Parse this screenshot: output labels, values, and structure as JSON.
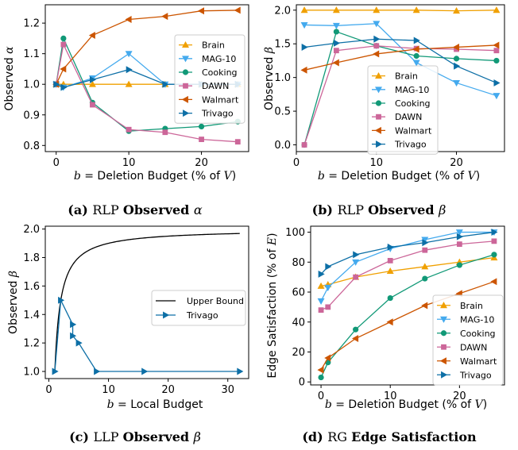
{
  "colors": {
    "Brain": "#f0a000",
    "MAG-10": "#44aaee",
    "Cooking": "#119977",
    "DAWN": "#cc6699",
    "Walmart": "#cc5500",
    "Trivago": "#0d6fa6",
    "Upper Bound": "#000000"
  },
  "chart_data": [
    {
      "type": "line",
      "panel": "a",
      "caption": {
        "tag": "(a)",
        "prefix": "RLP",
        "bold": "Observed",
        "symbol": "α"
      },
      "xlabel": "b = Deletion Budget (% of V)",
      "ylabel": "Observed α",
      "xlim": [
        -1.5,
        26.5
      ],
      "ylim": [
        0.78,
        1.26
      ],
      "xticks": [
        0,
        10,
        20
      ],
      "yticks": [
        0.8,
        0.9,
        1.0,
        1.1,
        1.2
      ],
      "ytick_labels": [
        "0.8",
        "0.9",
        "1.0",
        "1.1",
        "1.2"
      ],
      "legend": "center-right",
      "series": [
        {
          "name": "Brain",
          "marker": "tri-up",
          "x": [
            0,
            1,
            5,
            10,
            15,
            20,
            25
          ],
          "y": [
            1.0,
            1.0,
            1.0,
            1.0,
            1.0,
            1.0,
            1.0
          ]
        },
        {
          "name": "MAG-10",
          "marker": "tri-down",
          "x": [
            0,
            1,
            5,
            10,
            15,
            20,
            25
          ],
          "y": [
            1.0,
            0.99,
            1.02,
            1.1,
            1.0,
            1.0,
            1.0
          ]
        },
        {
          "name": "Cooking",
          "marker": "circle",
          "x": [
            0,
            1,
            5,
            10,
            15,
            20,
            25
          ],
          "y": [
            1.0,
            1.15,
            0.94,
            0.847,
            0.855,
            0.862,
            0.878
          ]
        },
        {
          "name": "DAWN",
          "marker": "square",
          "x": [
            0,
            1,
            5,
            10,
            15,
            20,
            25
          ],
          "y": [
            1.0,
            1.13,
            0.933,
            0.852,
            0.843,
            0.82,
            0.812
          ]
        },
        {
          "name": "Walmart",
          "marker": "tri-left",
          "x": [
            0,
            1,
            5,
            10,
            15,
            20,
            25
          ],
          "y": [
            1.0,
            1.05,
            1.16,
            1.212,
            1.222,
            1.24,
            1.242
          ]
        },
        {
          "name": "Trivago",
          "marker": "tri-right",
          "x": [
            0,
            1,
            5,
            10,
            15,
            20,
            25
          ],
          "y": [
            1.0,
            0.99,
            1.015,
            1.048,
            1.0,
            1.0,
            1.0
          ]
        }
      ]
    },
    {
      "type": "line",
      "panel": "b",
      "caption": {
        "tag": "(b)",
        "prefix": "RLP",
        "bold": "Observed",
        "symbol": "β"
      },
      "xlabel": "b = Deletion Budget (% of V)",
      "ylabel": "Observed β",
      "xlim": [
        0.0,
        26.0
      ],
      "ylim": [
        -0.1,
        2.08
      ],
      "xticks": [
        0,
        10,
        20
      ],
      "yticks": [
        0.0,
        0.5,
        1.0,
        1.5,
        2.0
      ],
      "ytick_labels": [
        "0.0",
        "0.5",
        "1.0",
        "1.5",
        "2.0"
      ],
      "legend": "lower-center",
      "series": [
        {
          "name": "Brain",
          "marker": "tri-up",
          "x": [
            1,
            5,
            10,
            15,
            20,
            25
          ],
          "y": [
            2.0,
            2.0,
            2.0,
            2.0,
            1.99,
            2.0
          ]
        },
        {
          "name": "MAG-10",
          "marker": "tri-down",
          "x": [
            1,
            5,
            10,
            15,
            20,
            25
          ],
          "y": [
            1.78,
            1.77,
            1.8,
            1.22,
            0.92,
            0.73
          ]
        },
        {
          "name": "Cooking",
          "marker": "circle",
          "x": [
            1,
            5,
            10,
            15,
            20,
            25
          ],
          "y": [
            0.0,
            1.68,
            1.47,
            1.32,
            1.28,
            1.25
          ]
        },
        {
          "name": "DAWN",
          "marker": "square",
          "x": [
            1,
            5,
            10,
            15,
            20,
            25
          ],
          "y": [
            0.0,
            1.4,
            1.47,
            1.43,
            1.42,
            1.4
          ]
        },
        {
          "name": "Walmart",
          "marker": "tri-left",
          "x": [
            1,
            5,
            10,
            15,
            20,
            25
          ],
          "y": [
            1.11,
            1.22,
            1.35,
            1.42,
            1.45,
            1.48
          ]
        },
        {
          "name": "Trivago",
          "marker": "tri-right",
          "x": [
            1,
            5,
            10,
            15,
            20,
            25
          ],
          "y": [
            1.45,
            1.51,
            1.57,
            1.55,
            1.17,
            0.92
          ]
        }
      ]
    },
    {
      "type": "line",
      "panel": "c",
      "caption": {
        "tag": "(c)",
        "prefix": "LLP",
        "bold": "Observed",
        "symbol": "β"
      },
      "xlabel": "b = Local Budget",
      "ylabel": "Observed β",
      "xlim": [
        -0.6,
        33.5
      ],
      "ylim": [
        0.95,
        2.02
      ],
      "xticks": [
        0,
        10,
        20,
        30
      ],
      "yticks": [
        1.0,
        1.2,
        1.4,
        1.6,
        1.8,
        2.0
      ],
      "ytick_labels": [
        "1.0",
        "1.2",
        "1.4",
        "1.6",
        "1.8",
        "2.0"
      ],
      "legend": "center-right",
      "series": [
        {
          "name": "Upper Bound",
          "marker": "none",
          "curve": "2 - 1/b",
          "x_range": [
            1,
            32
          ]
        },
        {
          "name": "Trivago",
          "marker": "tri-right",
          "x": [
            1,
            2,
            4,
            4,
            5,
            8,
            16,
            32
          ],
          "y": [
            1.0,
            1.5,
            1.33,
            1.25,
            1.2,
            1.0,
            1.0,
            1.0
          ]
        }
      ]
    },
    {
      "type": "line",
      "panel": "d",
      "caption": {
        "tag": "(d)",
        "prefix": "RG",
        "bold": "Edge Satisfaction",
        "symbol": ""
      },
      "xlabel": "b = Deletion Budget (% of V)",
      "ylabel": "Edge Satisfaction (% of E)",
      "xlim": [
        -1.5,
        26.5
      ],
      "ylim": [
        -2,
        104
      ],
      "xticks": [
        0,
        10,
        20
      ],
      "yticks": [
        0,
        20,
        40,
        60,
        80,
        100
      ],
      "ytick_labels": [
        "0",
        "20",
        "40",
        "60",
        "80",
        "100"
      ],
      "legend": "lower-right",
      "series": [
        {
          "name": "Brain",
          "marker": "tri-up",
          "x": [
            0,
            1,
            5,
            10,
            15,
            20,
            25
          ],
          "y": [
            64,
            65,
            70,
            74,
            77,
            80,
            83
          ]
        },
        {
          "name": "MAG-10",
          "marker": "tri-down",
          "x": [
            0,
            1,
            5,
            10,
            15,
            20,
            25
          ],
          "y": [
            54,
            63,
            80,
            89,
            95,
            100,
            100
          ]
        },
        {
          "name": "Cooking",
          "marker": "circle",
          "x": [
            0,
            1,
            5,
            10,
            15,
            20,
            25
          ],
          "y": [
            3,
            13,
            35,
            56,
            69,
            78,
            85
          ]
        },
        {
          "name": "DAWN",
          "marker": "square",
          "x": [
            0,
            1,
            5,
            10,
            15,
            20,
            25
          ],
          "y": [
            48,
            50,
            70,
            81,
            88,
            92,
            94
          ]
        },
        {
          "name": "Walmart",
          "marker": "tri-left",
          "x": [
            0,
            1,
            5,
            10,
            15,
            20,
            25
          ],
          "y": [
            8,
            16,
            29,
            40,
            51,
            59,
            67
          ]
        },
        {
          "name": "Trivago",
          "marker": "tri-right",
          "x": [
            0,
            1,
            5,
            10,
            15,
            20,
            25
          ],
          "y": [
            72,
            77,
            85,
            90,
            93,
            97,
            100
          ]
        }
      ]
    }
  ]
}
